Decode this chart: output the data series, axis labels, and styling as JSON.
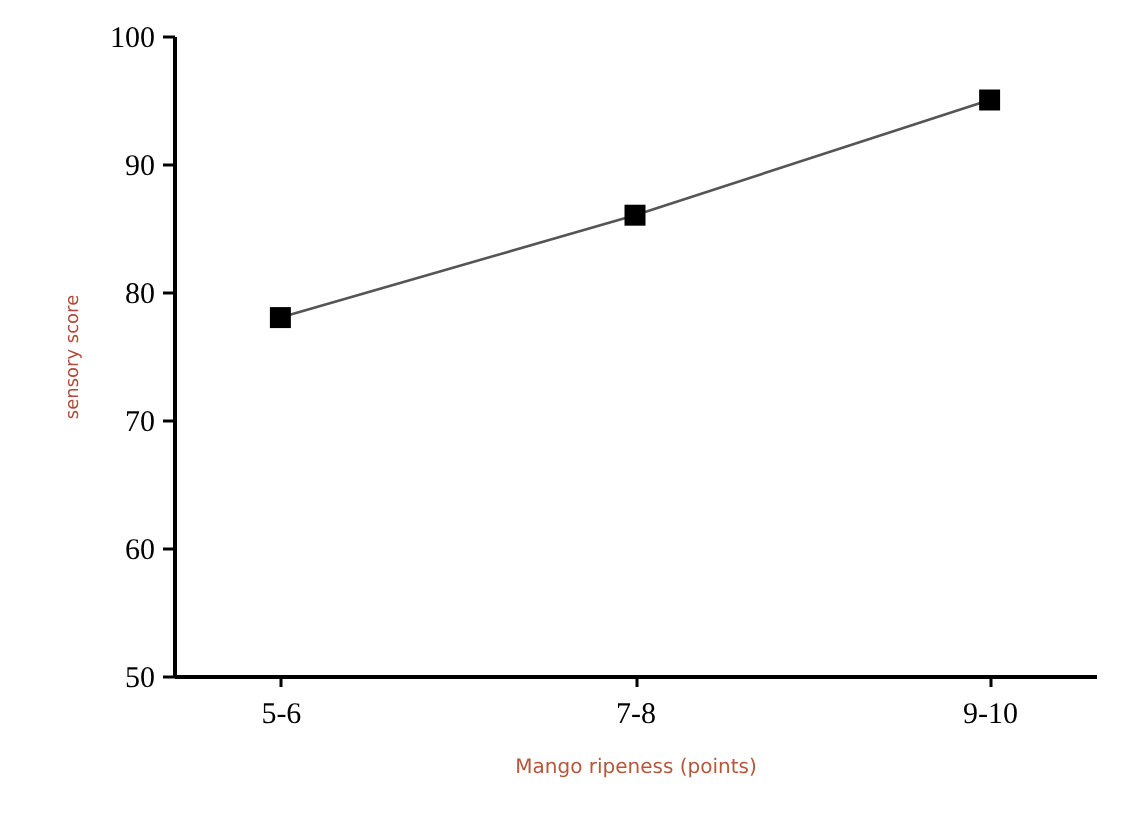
{
  "chart_data": {
    "type": "line",
    "xlabel": "Mango ripeness (points)",
    "ylabel": "sensory score",
    "categories": [
      "5-6",
      "7-8",
      "9-10"
    ],
    "series": [
      {
        "color": "#000000",
        "values": [
          78,
          86,
          95
        ]
      }
    ],
    "ylim": [
      50,
      100
    ],
    "yticks": [
      50,
      60,
      70,
      80,
      90,
      100
    ],
    "grid": false,
    "marker": "square",
    "line_style": "solid"
  }
}
